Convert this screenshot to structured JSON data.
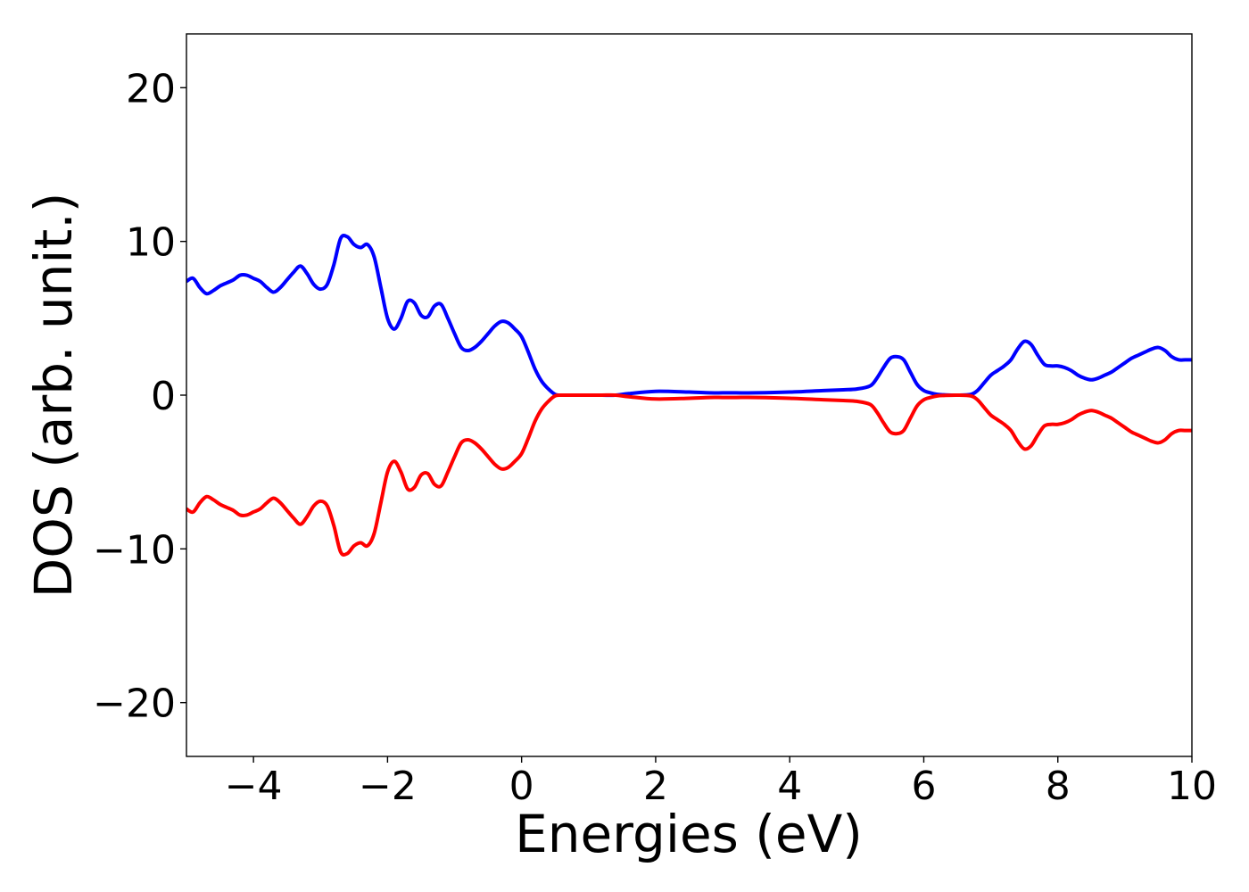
{
  "chart_data": {
    "type": "line",
    "title": "",
    "xlabel": "Energies (eV)",
    "ylabel": "DOS (arb. unit.)",
    "xlim": [
      -5,
      10
    ],
    "ylim": [
      -23.5,
      23.5
    ],
    "grid": false,
    "legend": "none",
    "xticks": [
      -4,
      -2,
      0,
      2,
      4,
      6,
      8,
      10
    ],
    "xtick_labels": [
      "−4",
      "−2",
      "0",
      "2",
      "4",
      "6",
      "8",
      "10"
    ],
    "yticks": [
      -20,
      -10,
      0,
      10,
      20
    ],
    "ytick_labels": [
      "−20",
      "−10",
      "0",
      "10",
      "20"
    ],
    "series": [
      {
        "color": "#0000ff",
        "x": [
          -5.0,
          -4.9,
          -4.8,
          -4.7,
          -4.6,
          -4.5,
          -4.4,
          -4.3,
          -4.2,
          -4.1,
          -4.0,
          -3.9,
          -3.8,
          -3.7,
          -3.6,
          -3.5,
          -3.4,
          -3.3,
          -3.2,
          -3.1,
          -3.0,
          -2.9,
          -2.8,
          -2.7,
          -2.6,
          -2.5,
          -2.4,
          -2.3,
          -2.2,
          -2.1,
          -2.0,
          -1.9,
          -1.8,
          -1.7,
          -1.6,
          -1.5,
          -1.4,
          -1.3,
          -1.2,
          -1.1,
          -1.0,
          -0.9,
          -0.8,
          -0.7,
          -0.6,
          -0.5,
          -0.4,
          -0.3,
          -0.2,
          -0.1,
          0.0,
          0.1,
          0.2,
          0.3,
          0.4,
          0.5,
          0.6,
          0.7,
          0.8,
          0.9,
          1.0,
          1.2,
          1.4,
          1.6,
          2.0,
          2.5,
          2.8,
          3.0,
          3.2,
          3.5,
          4.0,
          4.5,
          4.8,
          5.0,
          5.2,
          5.3,
          5.4,
          5.5,
          5.6,
          5.7,
          5.8,
          5.9,
          6.0,
          6.1,
          6.2,
          6.3,
          6.5,
          6.7,
          6.8,
          6.9,
          7.0,
          7.1,
          7.2,
          7.3,
          7.4,
          7.5,
          7.6,
          7.7,
          7.8,
          7.9,
          8.0,
          8.1,
          8.2,
          8.3,
          8.4,
          8.5,
          8.6,
          8.7,
          8.8,
          8.9,
          9.0,
          9.1,
          9.2,
          9.3,
          9.4,
          9.5,
          9.6,
          9.7,
          9.8,
          9.9,
          10.0
        ],
        "y": [
          7.4,
          7.6,
          7.0,
          6.6,
          6.8,
          7.1,
          7.3,
          7.5,
          7.8,
          7.8,
          7.6,
          7.4,
          7.0,
          6.7,
          7.0,
          7.5,
          8.0,
          8.4,
          7.9,
          7.2,
          6.9,
          7.2,
          8.5,
          10.2,
          10.3,
          9.8,
          9.6,
          9.8,
          9.0,
          7.0,
          5.0,
          4.3,
          5.0,
          6.1,
          6.0,
          5.2,
          5.1,
          5.8,
          5.9,
          5.0,
          4.0,
          3.1,
          2.9,
          3.1,
          3.5,
          4.0,
          4.5,
          4.8,
          4.7,
          4.3,
          3.8,
          2.8,
          1.7,
          0.9,
          0.4,
          0.05,
          0.0,
          0.0,
          0.0,
          0.0,
          0.0,
          0.0,
          0.0,
          0.1,
          0.25,
          0.2,
          0.15,
          0.15,
          0.15,
          0.15,
          0.2,
          0.3,
          0.35,
          0.4,
          0.6,
          1.1,
          1.8,
          2.4,
          2.5,
          2.3,
          1.5,
          0.7,
          0.3,
          0.15,
          0.05,
          0.02,
          0.0,
          0.05,
          0.3,
          0.8,
          1.3,
          1.6,
          1.9,
          2.3,
          3.0,
          3.5,
          3.3,
          2.6,
          2.0,
          1.9,
          1.9,
          1.8,
          1.6,
          1.3,
          1.1,
          1.0,
          1.1,
          1.3,
          1.5,
          1.8,
          2.1,
          2.4,
          2.6,
          2.8,
          3.0,
          3.1,
          2.9,
          2.5,
          2.3,
          2.3,
          2.3
        ]
      },
      {
        "color": "#ff0000",
        "x": [
          -5.0,
          -4.9,
          -4.8,
          -4.7,
          -4.6,
          -4.5,
          -4.4,
          -4.3,
          -4.2,
          -4.1,
          -4.0,
          -3.9,
          -3.8,
          -3.7,
          -3.6,
          -3.5,
          -3.4,
          -3.3,
          -3.2,
          -3.1,
          -3.0,
          -2.9,
          -2.8,
          -2.7,
          -2.6,
          -2.5,
          -2.4,
          -2.3,
          -2.2,
          -2.1,
          -2.0,
          -1.9,
          -1.8,
          -1.7,
          -1.6,
          -1.5,
          -1.4,
          -1.3,
          -1.2,
          -1.1,
          -1.0,
          -0.9,
          -0.8,
          -0.7,
          -0.6,
          -0.5,
          -0.4,
          -0.3,
          -0.2,
          -0.1,
          0.0,
          0.1,
          0.2,
          0.3,
          0.4,
          0.5,
          0.6,
          0.7,
          0.8,
          0.9,
          1.0,
          1.2,
          1.4,
          1.6,
          2.0,
          2.5,
          2.8,
          3.0,
          3.2,
          3.5,
          4.0,
          4.5,
          4.8,
          5.0,
          5.2,
          5.3,
          5.4,
          5.5,
          5.6,
          5.7,
          5.8,
          5.9,
          6.0,
          6.1,
          6.2,
          6.3,
          6.5,
          6.7,
          6.8,
          6.9,
          7.0,
          7.1,
          7.2,
          7.3,
          7.4,
          7.5,
          7.6,
          7.7,
          7.8,
          7.9,
          8.0,
          8.1,
          8.2,
          8.3,
          8.4,
          8.5,
          8.6,
          8.7,
          8.8,
          8.9,
          9.0,
          9.1,
          9.2,
          9.3,
          9.4,
          9.5,
          9.6,
          9.7,
          9.8,
          9.9,
          10.0
        ],
        "y": [
          -7.4,
          -7.6,
          -7.0,
          -6.6,
          -6.8,
          -7.1,
          -7.3,
          -7.5,
          -7.8,
          -7.8,
          -7.6,
          -7.4,
          -7.0,
          -6.7,
          -7.0,
          -7.5,
          -8.0,
          -8.4,
          -7.9,
          -7.2,
          -6.9,
          -7.2,
          -8.5,
          -10.2,
          -10.3,
          -9.8,
          -9.6,
          -9.8,
          -9.0,
          -7.0,
          -5.0,
          -4.3,
          -5.0,
          -6.1,
          -6.0,
          -5.2,
          -5.1,
          -5.8,
          -5.9,
          -5.0,
          -4.0,
          -3.1,
          -2.9,
          -3.1,
          -3.5,
          -4.0,
          -4.5,
          -4.8,
          -4.7,
          -4.3,
          -3.8,
          -2.8,
          -1.7,
          -0.9,
          -0.4,
          -0.05,
          0.0,
          0.0,
          0.0,
          0.0,
          0.0,
          0.0,
          0.0,
          -0.1,
          -0.25,
          -0.2,
          -0.15,
          -0.15,
          -0.15,
          -0.15,
          -0.2,
          -0.3,
          -0.35,
          -0.4,
          -0.6,
          -1.1,
          -1.8,
          -2.4,
          -2.5,
          -2.3,
          -1.5,
          -0.7,
          -0.3,
          -0.15,
          -0.05,
          -0.02,
          0.0,
          -0.05,
          -0.3,
          -0.8,
          -1.3,
          -1.6,
          -1.9,
          -2.3,
          -3.0,
          -3.5,
          -3.3,
          -2.6,
          -2.0,
          -1.9,
          -1.9,
          -1.8,
          -1.6,
          -1.3,
          -1.1,
          -1.0,
          -1.1,
          -1.3,
          -1.5,
          -1.8,
          -2.1,
          -2.4,
          -2.6,
          -2.8,
          -3.0,
          -3.1,
          -2.9,
          -2.5,
          -2.3,
          -2.3,
          -2.3
        ]
      }
    ]
  }
}
